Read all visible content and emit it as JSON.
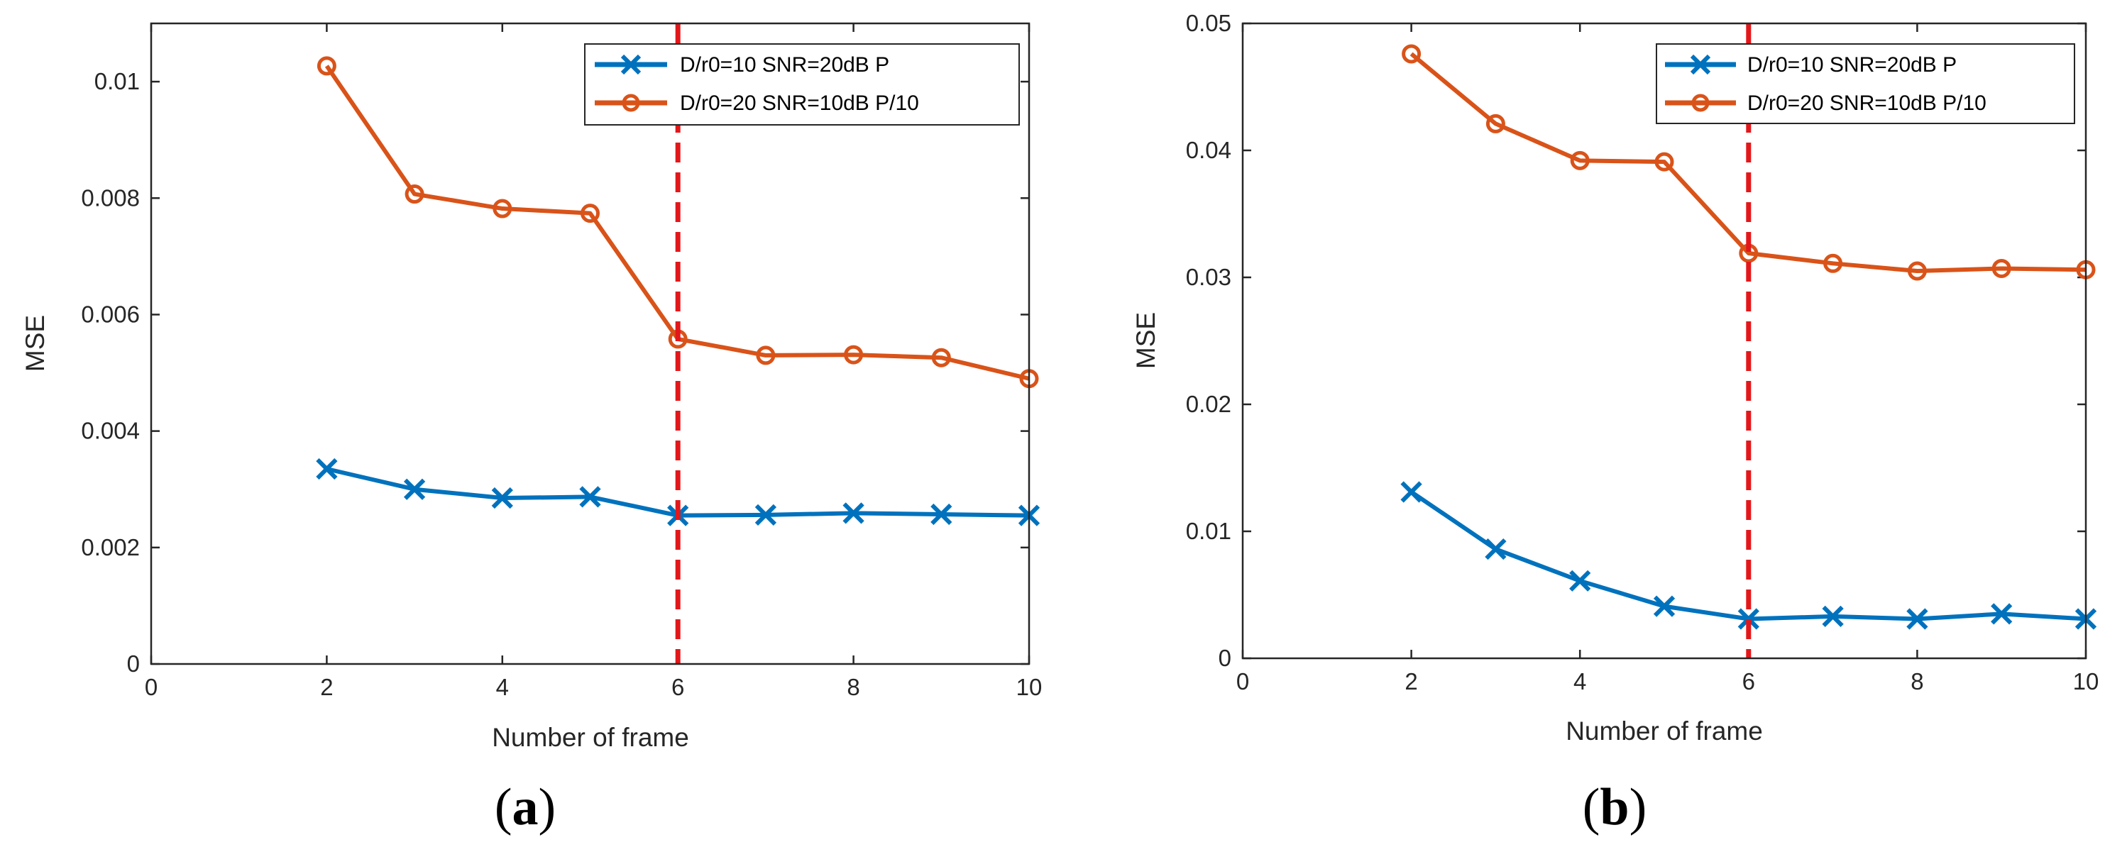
{
  "chart_data": [
    {
      "type": "line",
      "panel": "a",
      "caption_open": "(",
      "caption_letter": "a",
      "caption_close": ")",
      "xlabel": "Number of frame",
      "ylabel": "MSE",
      "xlim": [
        0,
        10
      ],
      "ylim": [
        0,
        0.011
      ],
      "xticks": [
        0,
        2,
        4,
        6,
        8,
        10
      ],
      "xtick_labels": [
        "0",
        "2",
        "4",
        "6",
        "8",
        "10"
      ],
      "yticks": [
        0,
        0.002,
        0.004,
        0.006,
        0.008,
        0.01
      ],
      "ytick_labels": [
        "0",
        "0.002",
        "0.004",
        "0.006",
        "0.008",
        "0.01"
      ],
      "x": [
        2,
        3,
        4,
        5,
        6,
        7,
        8,
        9,
        10
      ],
      "series": [
        {
          "name": "D/r0=10 SNR=20dB P",
          "marker": "x",
          "color": "#0072BD",
          "values": [
            0.00335,
            0.003,
            0.00285,
            0.00287,
            0.00255,
            0.00256,
            0.00259,
            0.00257,
            0.00255
          ]
        },
        {
          "name": "D/r0=20 SNR=10dB P/10",
          "marker": "o",
          "color": "#D95319",
          "values": [
            0.01027,
            0.00807,
            0.00782,
            0.00774,
            0.00558,
            0.0053,
            0.00531,
            0.00526,
            0.0049
          ]
        }
      ],
      "vline": {
        "x": 6,
        "color": "#E3171A"
      },
      "legend_position": "top-right",
      "grid": false
    },
    {
      "type": "line",
      "panel": "b",
      "caption_open": "(",
      "caption_letter": "b",
      "caption_close": ")",
      "xlabel": "Number of frame",
      "ylabel": "MSE",
      "xlim": [
        0,
        10
      ],
      "ylim": [
        0,
        0.05
      ],
      "xticks": [
        0,
        2,
        4,
        6,
        8,
        10
      ],
      "xtick_labels": [
        "0",
        "2",
        "4",
        "6",
        "8",
        "10"
      ],
      "yticks": [
        0,
        0.01,
        0.02,
        0.03,
        0.04,
        0.05
      ],
      "ytick_labels": [
        "0",
        "0.01",
        "0.02",
        "0.03",
        "0.04",
        "0.05"
      ],
      "x": [
        2,
        3,
        4,
        5,
        6,
        7,
        8,
        9,
        10
      ],
      "series": [
        {
          "name": "D/r0=10 SNR=20dB P",
          "marker": "x",
          "color": "#0072BD",
          "values": [
            0.0131,
            0.0086,
            0.0061,
            0.0041,
            0.0031,
            0.0033,
            0.0031,
            0.0035,
            0.0031
          ]
        },
        {
          "name": "D/r0=20 SNR=10dB P/10",
          "marker": "o",
          "color": "#D95319",
          "values": [
            0.0476,
            0.0421,
            0.0392,
            0.0391,
            0.0319,
            0.0311,
            0.0305,
            0.0307,
            0.0306
          ]
        }
      ],
      "vline": {
        "x": 6,
        "color": "#E3171A"
      },
      "legend_position": "top-right",
      "grid": false
    }
  ]
}
